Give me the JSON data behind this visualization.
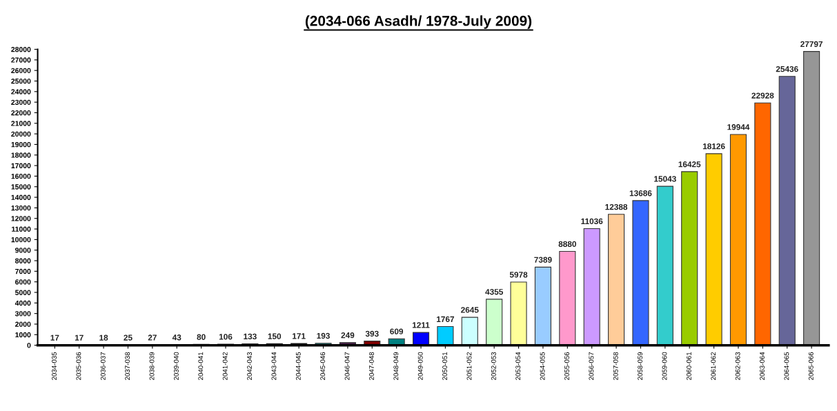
{
  "chart_data": {
    "type": "bar",
    "title": "(2034-066 Asadh/ 1978-July 2009)",
    "categories": [
      "2034-035",
      "2035-036",
      "2036-037",
      "2037-038",
      "2038-039",
      "2039-040",
      "2040-041",
      "2041-042",
      "2042-043",
      "2043-044",
      "2044-045",
      "2045-046",
      "2046-047",
      "2047-048",
      "2048-049",
      "2049-050",
      "2050-051",
      "2051-052",
      "2052-053",
      "2053-054",
      "2054-055",
      "2055-056",
      "2056-057",
      "2057-058",
      "2058-059",
      "2059-060",
      "2060-061",
      "2061-062",
      "2062-063",
      "2063-064",
      "2064-065",
      "2065-066"
    ],
    "values": [
      17,
      17,
      18,
      25,
      27,
      43,
      80,
      106,
      133,
      150,
      171,
      193,
      249,
      393,
      609,
      1211,
      1767,
      2645,
      4355,
      5978,
      7389,
      8880,
      11036,
      12388,
      13686,
      15043,
      16425,
      18126,
      19944,
      22928,
      25436,
      27797
    ],
    "colors": [
      "#000000",
      "#000000",
      "#000000",
      "#000000",
      "#000000",
      "#000000",
      "#000000",
      "#000000",
      "#000000",
      "#000000",
      "#000000",
      "#2f7f7f",
      "#4b1f4b",
      "#800000",
      "#008080",
      "#0000ff",
      "#00ccff",
      "#ccffff",
      "#ccffcc",
      "#ffff99",
      "#99ccff",
      "#ff99cc",
      "#cc99ff",
      "#ffcc99",
      "#3366ff",
      "#33cccc",
      "#99cc00",
      "#ffcc00",
      "#ff9900",
      "#ff6600",
      "#666699",
      "#969696"
    ],
    "ylim": [
      0,
      28000
    ],
    "yticks": [
      0,
      1000,
      2000,
      3000,
      4000,
      5000,
      6000,
      7000,
      8000,
      9000,
      10000,
      11000,
      12000,
      13000,
      14000,
      15000,
      16000,
      17000,
      18000,
      19000,
      20000,
      21000,
      22000,
      23000,
      24000,
      25000,
      26000,
      27000,
      28000
    ],
    "data_labels": true,
    "grid": false,
    "legend": false
  }
}
